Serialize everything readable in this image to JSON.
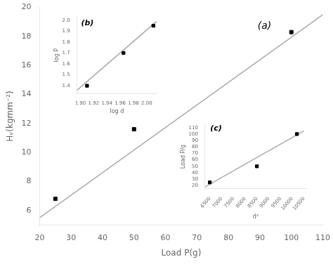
{
  "chart_data": [
    {
      "type": "scatter",
      "xlabel": "Load P(g)",
      "ylabel": "Hᵥ(kgmm⁻²)",
      "annotation": "(a)",
      "xlim": [
        20,
        110
      ],
      "ylim": [
        5,
        20
      ],
      "xticks": [
        20,
        30,
        40,
        50,
        60,
        70,
        80,
        90,
        100,
        110
      ],
      "yticks": [
        6,
        8,
        10,
        12,
        14,
        16,
        18,
        20
      ],
      "grid": false,
      "series": [
        {
          "type": "line",
          "color": "#aaaaaa",
          "x": [
            20,
            110
          ],
          "values": [
            5.5,
            19.5
          ]
        },
        {
          "type": "scatter",
          "color": "black",
          "marker": "square",
          "x": [
            25,
            50,
            100
          ],
          "values": [
            6.8,
            11.6,
            18.3
          ]
        }
      ]
    },
    {
      "type": "scatter",
      "xlabel": "log d",
      "ylabel": "log P",
      "annotation": "(b)",
      "xlim": [
        1.895,
        2.015
      ],
      "ylim": [
        1.33,
        2.03
      ],
      "xticks": [
        {
          "value": 1.9,
          "label": "1.90"
        },
        1.92,
        1.94,
        1.96,
        1.98,
        {
          "value": 2,
          "label": "2.00"
        }
      ],
      "yticks": [
        1.4,
        1.5,
        1.6,
        1.7,
        1.8,
        1.9,
        {
          "value": 2,
          "label": "2.0"
        }
      ],
      "grid": false,
      "series": [
        {
          "type": "line",
          "color": "#aaaaaa",
          "x": [
            1.895,
            2.015
          ],
          "values": [
            1.36,
            1.99
          ]
        },
        {
          "type": "scatter",
          "color": "black",
          "marker": "square",
          "x": [
            1.91,
            1.965,
            2.01
          ],
          "values": [
            1.4,
            1.7,
            1.95
          ]
        }
      ]
    },
    {
      "type": "scatter",
      "xlabel": "d²",
      "ylabel": "Load P/g",
      "annotation": "(c)",
      "xlim": [
        6300,
        10600
      ],
      "ylim": [
        15,
        115
      ],
      "xticks": [
        6500,
        7000,
        7500,
        8000,
        8500,
        9000,
        9500,
        10000,
        10500
      ],
      "yticks": [
        20,
        30,
        40,
        50,
        60,
        70,
        80,
        90,
        100,
        110
      ],
      "grid": false,
      "series": [
        {
          "type": "line",
          "color": "#aaaaaa",
          "x": [
            6300,
            10500
          ],
          "values": [
            18,
            105
          ]
        },
        {
          "type": "scatter",
          "color": "black",
          "marker": "square",
          "x": [
            6500,
            8500,
            10200
          ],
          "values": [
            25,
            50,
            100
          ]
        }
      ]
    }
  ]
}
